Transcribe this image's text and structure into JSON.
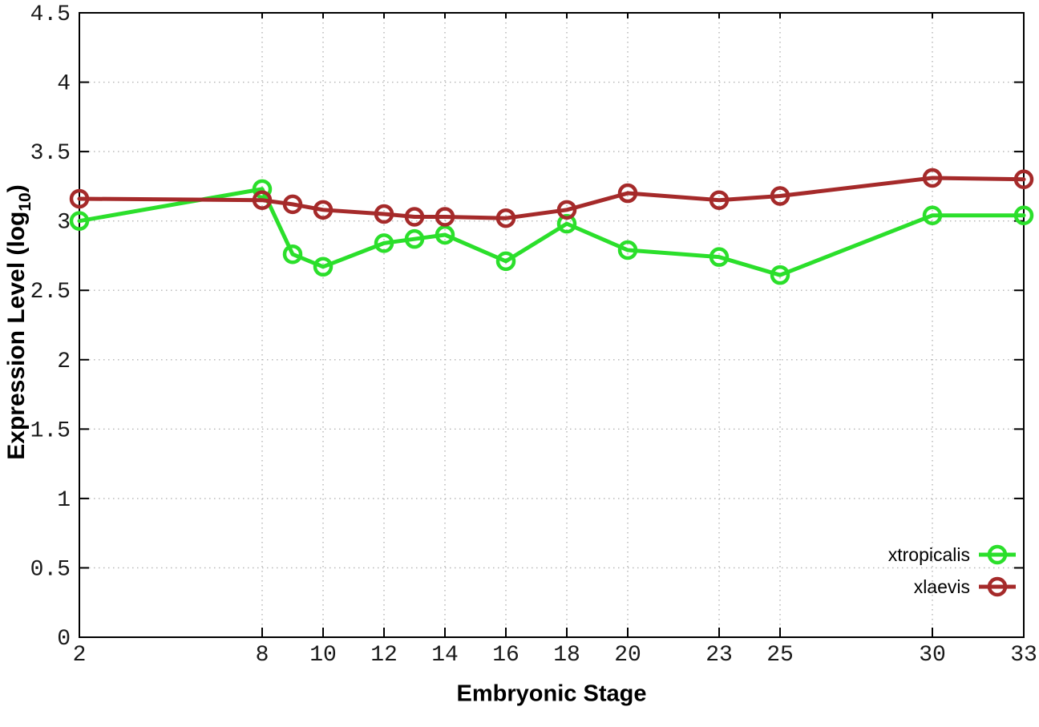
{
  "chart_data": {
    "type": "line",
    "title": "",
    "xlabel": "Embryonic Stage",
    "ylabel": "Expression Level (log10)",
    "ylabel_parts": {
      "main": "Expression Level (log",
      "sub": "10",
      "end": ")"
    },
    "x": [
      2,
      8,
      9,
      10,
      12,
      13,
      14,
      16,
      18,
      20,
      23,
      25,
      30,
      33
    ],
    "series": [
      {
        "name": "xtropicalis",
        "color": "#2bdf2b",
        "marker": "open-circle",
        "values": [
          3.0,
          3.23,
          2.76,
          2.67,
          2.84,
          2.87,
          2.9,
          2.71,
          2.98,
          2.79,
          2.74,
          2.61,
          3.04,
          3.04
        ]
      },
      {
        "name": "xlaevis",
        "color": "#a52a2a",
        "marker": "open-circle",
        "values": [
          3.16,
          3.15,
          3.12,
          3.08,
          3.05,
          3.03,
          3.03,
          3.02,
          3.08,
          3.2,
          3.15,
          3.18,
          3.31,
          3.3
        ]
      }
    ],
    "xlim": [
      2,
      33
    ],
    "ylim": [
      0,
      4.5
    ],
    "xtick_values": [
      2,
      8,
      10,
      12,
      14,
      16,
      18,
      20,
      23,
      25,
      30,
      33
    ],
    "xtick_labels": [
      "2",
      "8",
      "10",
      "12",
      "14",
      "16",
      "18",
      "20",
      "23",
      "25",
      "30",
      "33"
    ],
    "ytick_values": [
      0,
      0.5,
      1,
      1.5,
      2,
      2.5,
      3,
      3.5,
      4,
      4.5
    ],
    "ytick_labels": [
      "0",
      "0.5",
      "1",
      "1.5",
      "2",
      "2.5",
      "3",
      "3.5",
      "4",
      "4.5"
    ],
    "grid": true,
    "legend_position": "bottom-right",
    "legend_entries": [
      "xtropicalis",
      "xlaevis"
    ],
    "colors": {
      "background": "#ffffff",
      "grid": "#b4b4b4",
      "axis": "#000000",
      "tick_label": "#1a1a1a"
    }
  }
}
